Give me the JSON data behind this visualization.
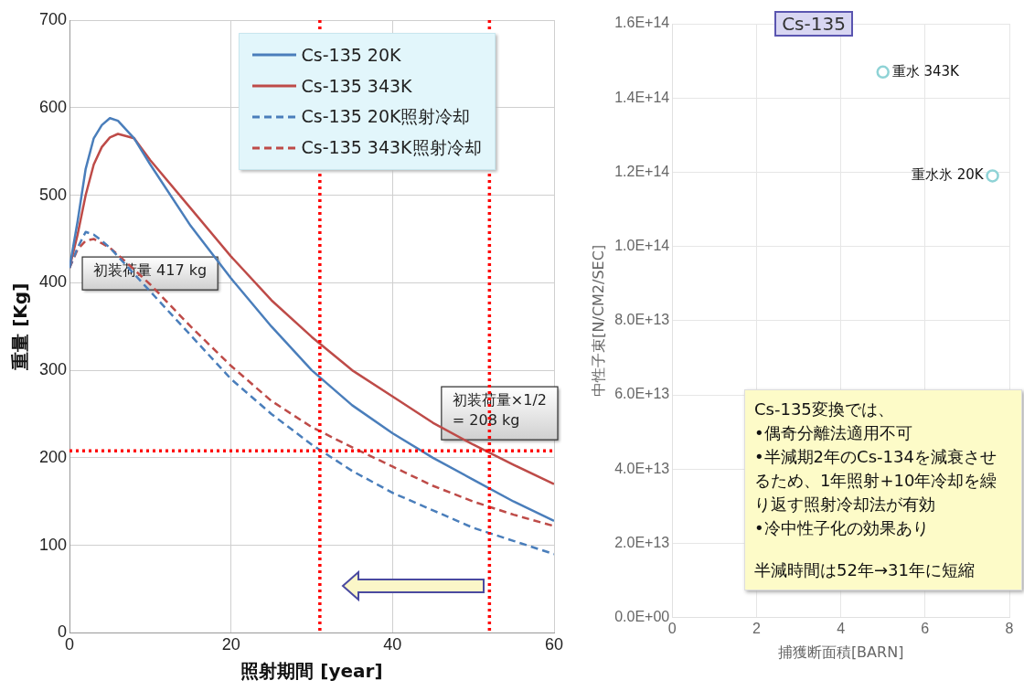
{
  "chart_data": [
    {
      "type": "line",
      "xlabel": "照射期間 [year]",
      "ylabel": "重量 [Kg]",
      "x": [
        0,
        1,
        2,
        3,
        4,
        5,
        6,
        8,
        10,
        15,
        20,
        25,
        30,
        35,
        40,
        45,
        50,
        55,
        60
      ],
      "series": [
        {
          "name": "Cs-135 20K",
          "color": "#4a7ebb",
          "line_style": "solid",
          "values": [
            417,
            470,
            530,
            565,
            580,
            588,
            585,
            565,
            535,
            465,
            405,
            350,
            300,
            260,
            228,
            200,
            175,
            150,
            128
          ]
        },
        {
          "name": "Cs-135 343K",
          "color": "#be4b48",
          "line_style": "solid",
          "values": [
            417,
            455,
            500,
            535,
            555,
            566,
            570,
            565,
            540,
            485,
            430,
            380,
            338,
            300,
            270,
            240,
            215,
            192,
            170
          ]
        },
        {
          "name": "Cs-135 20K照射冷却",
          "color": "#4a7ebb",
          "line_style": "dashed",
          "values": [
            417,
            440,
            458,
            455,
            448,
            440,
            430,
            410,
            390,
            340,
            290,
            250,
            215,
            185,
            160,
            140,
            120,
            105,
            90
          ]
        },
        {
          "name": "Cs-135 343K照射冷却",
          "color": "#be4b48",
          "line_style": "dashed",
          "values": [
            417,
            438,
            448,
            450,
            445,
            440,
            432,
            415,
            398,
            350,
            305,
            265,
            235,
            212,
            190,
            168,
            150,
            135,
            122
          ]
        }
      ],
      "xlim": [
        0,
        60
      ],
      "xticks": [
        0,
        20,
        40,
        60
      ],
      "ylim": [
        0,
        700
      ],
      "yticks": [
        0,
        100,
        200,
        300,
        400,
        500,
        600,
        700
      ],
      "grid": true,
      "legend": "top",
      "marker": "none",
      "ref_lines": [
        {
          "axis": "y",
          "value": 208,
          "color": "#ff0000",
          "line_style": "dotted"
        },
        {
          "axis": "x",
          "value": 31,
          "color": "#ff0000",
          "line_style": "dotted"
        },
        {
          "axis": "x",
          "value": 52,
          "color": "#ff0000",
          "line_style": "dotted"
        }
      ],
      "annotations": [
        {
          "text": "初装荷量 417 kg",
          "x": 0,
          "y": 417
        },
        {
          "text": "初装荷量×1/2\n= 208 kg",
          "x": 52,
          "y": 208
        }
      ]
    },
    {
      "type": "scatter",
      "title": "Cs-135",
      "xlabel": "捕獲断面積[BARN]",
      "ylabel": "中性子束[N/CM2/SEC]",
      "x": [
        5.0,
        7.6
      ],
      "series": [
        {
          "color": "#8fd3d6",
          "values": [
            147000000000000.0,
            119000000000000.0
          ]
        }
      ],
      "xlim": [
        0,
        8
      ],
      "xticks": [
        0,
        2,
        4,
        6,
        8
      ],
      "ylim": [
        0,
        160000000000000.0
      ],
      "yticks": [
        {
          "value": 0,
          "label": "0.0E+00"
        },
        {
          "value": 20000000000000.0,
          "label": "2.0E+13"
        },
        {
          "value": 40000000000000.0,
          "label": "4.0E+13"
        },
        {
          "value": 60000000000000.0,
          "label": "6.0E+13"
        },
        {
          "value": 80000000000000.0,
          "label": "8.0E+13"
        },
        {
          "value": 100000000000000.0,
          "label": "1.0E+14"
        },
        {
          "value": 120000000000000.0,
          "label": "1.2E+14"
        },
        {
          "value": 140000000000000.0,
          "label": "1.4E+14"
        },
        {
          "value": 160000000000000.0,
          "label": "1.6E+14"
        }
      ],
      "grid": true,
      "marker": "circle",
      "annotations": [
        {
          "text": "重水 343K",
          "x": 5.0,
          "y": 147000000000000.0
        },
        {
          "text": "重水氷 20K",
          "x": 7.6,
          "y": 119000000000000.0
        },
        "Cs-135変換では、\n•偶奇分離法適用不可\n•半減期2年のCs-134を減衰させるため、1年照射+10年冷却を繰り返す照射冷却法が有効\n•冷中性子化の効果あり",
        "半減時間は52年→31年に短縮"
      ]
    }
  ]
}
